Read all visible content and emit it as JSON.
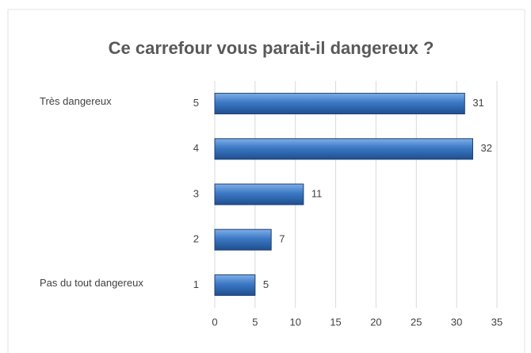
{
  "chart_data": {
    "type": "bar",
    "orientation": "horizontal",
    "title": "Ce carrefour vous parait-il dangereux ?",
    "categories": [
      "5",
      "4",
      "3",
      "2",
      "1"
    ],
    "category_descriptions": [
      "Très dangereux",
      null,
      null,
      null,
      "Pas du tout dangereux"
    ],
    "values": [
      31,
      32,
      11,
      7,
      5
    ],
    "color": "#3b78c4",
    "xlim": [
      0,
      35
    ],
    "xticks": [
      0,
      5,
      10,
      15,
      20,
      25,
      30,
      35
    ],
    "grid": true
  }
}
